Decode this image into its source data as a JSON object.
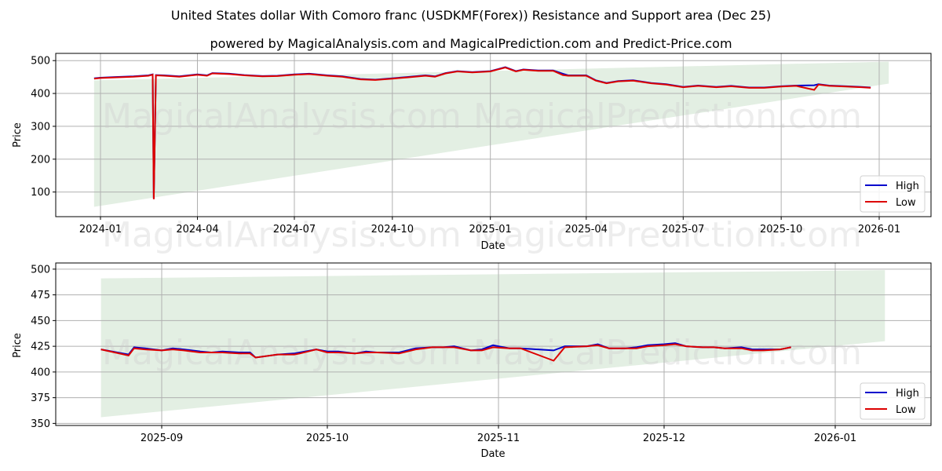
{
  "header": {
    "title": "United States dollar With Comoro franc (USDKMF(Forex)) Resistance and Support area (Dec 25)",
    "subtitle": "powered by MagicalAnalysis.com and MagicalPrediction.com and Predict-Price.com"
  },
  "watermarks": [
    "MagicalAnalysis.com",
    "MagicalPrediction.com"
  ],
  "colors": {
    "high": "#0000cc",
    "low": "#dd0000",
    "band": "#e3efe3",
    "grid": "#b0b0b0"
  },
  "legend": {
    "high_label": "High",
    "low_label": "Low"
  },
  "chart_data": [
    {
      "type": "line",
      "title": "Full history",
      "xlabel": "Date",
      "ylabel": "Price",
      "ylim": [
        25,
        522
      ],
      "yticks": [
        100,
        200,
        300,
        400,
        500
      ],
      "xticks": [
        "2024-01",
        "2024-04",
        "2024-07",
        "2024-10",
        "2025-01",
        "2025-04",
        "2025-07",
        "2025-10",
        "2026-01"
      ],
      "grid": true,
      "legend_position": "lower right",
      "band": {
        "name": "Resistance and Support area",
        "start": "2023-12-26",
        "end": "2026-01-10",
        "upper_start": 440,
        "upper_end": 497,
        "lower_start": 55,
        "lower_end": 430
      },
      "series": [
        {
          "name": "High",
          "x": [
            "2023-12-26",
            "2024-01-01",
            "2024-01-15",
            "2024-02-01",
            "2024-02-15",
            "2024-02-19",
            "2024-02-20",
            "2024-02-22",
            "2024-03-01",
            "2024-03-15",
            "2024-04-01",
            "2024-04-10",
            "2024-04-15",
            "2024-05-01",
            "2024-05-15",
            "2024-06-01",
            "2024-06-15",
            "2024-07-01",
            "2024-07-15",
            "2024-08-01",
            "2024-08-15",
            "2024-09-01",
            "2024-09-15",
            "2024-10-01",
            "2024-10-15",
            "2024-11-01",
            "2024-11-10",
            "2024-11-20",
            "2024-12-01",
            "2024-12-15",
            "2025-01-01",
            "2025-01-15",
            "2025-01-25",
            "2025-02-01",
            "2025-02-15",
            "2025-03-01",
            "2025-03-10",
            "2025-03-15",
            "2025-04-01",
            "2025-04-10",
            "2025-04-20",
            "2025-05-01",
            "2025-05-15",
            "2025-06-01",
            "2025-06-15",
            "2025-07-01",
            "2025-07-15",
            "2025-08-01",
            "2025-08-15",
            "2025-09-01",
            "2025-09-15",
            "2025-10-01",
            "2025-10-15",
            "2025-11-01",
            "2025-11-05",
            "2025-11-15",
            "2025-12-01",
            "2025-12-15",
            "2025-12-24"
          ],
          "values": [
            446,
            448,
            450,
            452,
            455,
            458,
            80,
            456,
            455,
            452,
            458,
            455,
            462,
            460,
            456,
            453,
            454,
            458,
            460,
            455,
            452,
            444,
            442,
            446,
            450,
            455,
            452,
            462,
            468,
            465,
            468,
            480,
            468,
            473,
            470,
            470,
            460,
            455,
            455,
            440,
            432,
            438,
            440,
            432,
            428,
            420,
            424,
            420,
            423,
            418,
            418,
            422,
            424,
            425,
            428,
            424,
            422,
            420,
            418
          ]
        },
        {
          "name": "Low",
          "x": [
            "2023-12-26",
            "2024-01-01",
            "2024-01-15",
            "2024-02-01",
            "2024-02-15",
            "2024-02-19",
            "2024-02-20",
            "2024-02-22",
            "2024-03-01",
            "2024-03-15",
            "2024-04-01",
            "2024-04-10",
            "2024-04-15",
            "2024-05-01",
            "2024-05-15",
            "2024-06-01",
            "2024-06-15",
            "2024-07-01",
            "2024-07-15",
            "2024-08-01",
            "2024-08-15",
            "2024-09-01",
            "2024-09-15",
            "2024-10-01",
            "2024-10-15",
            "2024-11-01",
            "2024-11-10",
            "2024-11-20",
            "2024-12-01",
            "2024-12-15",
            "2025-01-01",
            "2025-01-15",
            "2025-01-25",
            "2025-02-01",
            "2025-02-15",
            "2025-03-01",
            "2025-03-10",
            "2025-03-15",
            "2025-04-01",
            "2025-04-10",
            "2025-04-20",
            "2025-05-01",
            "2025-05-15",
            "2025-06-01",
            "2025-06-15",
            "2025-07-01",
            "2025-07-15",
            "2025-08-01",
            "2025-08-15",
            "2025-09-01",
            "2025-09-15",
            "2025-10-01",
            "2025-10-15",
            "2025-11-01",
            "2025-11-05",
            "2025-11-15",
            "2025-12-01",
            "2025-12-15",
            "2025-12-24"
          ],
          "values": [
            445,
            447,
            449,
            451,
            454,
            457,
            78,
            455,
            454,
            451,
            457,
            454,
            461,
            459,
            455,
            452,
            453,
            457,
            459,
            454,
            451,
            443,
            441,
            445,
            449,
            454,
            451,
            461,
            467,
            464,
            467,
            479,
            467,
            472,
            469,
            469,
            456,
            454,
            454,
            439,
            431,
            437,
            439,
            431,
            427,
            419,
            423,
            419,
            422,
            417,
            417,
            421,
            423,
            411,
            427,
            423,
            421,
            419,
            417
          ]
        }
      ]
    },
    {
      "type": "line",
      "title": "Recent detail",
      "xlabel": "Date",
      "ylabel": "Price",
      "ylim": [
        348,
        506
      ],
      "yticks": [
        350,
        375,
        400,
        425,
        450,
        475,
        500
      ],
      "xticks": [
        "2025-09",
        "2025-10",
        "2025-11",
        "2025-12",
        "2026-01"
      ],
      "grid": true,
      "legend_position": "lower right",
      "band": {
        "name": "Resistance and Support area",
        "start": "2025-08-21",
        "end": "2026-01-10",
        "upper_start": 491,
        "upper_end": 499,
        "lower_start": 356,
        "lower_end": 430
      },
      "series": [
        {
          "name": "High",
          "x": [
            "2025-08-21",
            "2025-08-26",
            "2025-08-27",
            "2025-08-29",
            "2025-09-01",
            "2025-09-03",
            "2025-09-05",
            "2025-09-08",
            "2025-09-10",
            "2025-09-12",
            "2025-09-15",
            "2025-09-17",
            "2025-09-18",
            "2025-09-22",
            "2025-09-25",
            "2025-09-26",
            "2025-09-29",
            "2025-10-01",
            "2025-10-03",
            "2025-10-06",
            "2025-10-08",
            "2025-10-10",
            "2025-10-14",
            "2025-10-17",
            "2025-10-20",
            "2025-10-22",
            "2025-10-24",
            "2025-10-27",
            "2025-10-29",
            "2025-10-31",
            "2025-11-03",
            "2025-11-05",
            "2025-11-11",
            "2025-11-13",
            "2025-11-17",
            "2025-11-19",
            "2025-11-21",
            "2025-11-24",
            "2025-11-26",
            "2025-11-28",
            "2025-12-01",
            "2025-12-03",
            "2025-12-05",
            "2025-12-08",
            "2025-12-10",
            "2025-12-12",
            "2025-12-15",
            "2025-12-17",
            "2025-12-19",
            "2025-12-22",
            "2025-12-24"
          ],
          "values": [
            422,
            417,
            424,
            423,
            421,
            423,
            422,
            420,
            419,
            420,
            419,
            419,
            414,
            417,
            418,
            419,
            422,
            420,
            420,
            418,
            420,
            419,
            419,
            423,
            424,
            424,
            425,
            421,
            422,
            426,
            423,
            423,
            421,
            425,
            425,
            427,
            423,
            423,
            424,
            426,
            427,
            428,
            425,
            424,
            424,
            423,
            424,
            422,
            422,
            422,
            424
          ]
        },
        {
          "name": "Low",
          "x": [
            "2025-08-21",
            "2025-08-26",
            "2025-08-27",
            "2025-08-29",
            "2025-09-01",
            "2025-09-03",
            "2025-09-05",
            "2025-09-08",
            "2025-09-10",
            "2025-09-12",
            "2025-09-15",
            "2025-09-17",
            "2025-09-18",
            "2025-09-22",
            "2025-09-25",
            "2025-09-26",
            "2025-09-29",
            "2025-10-01",
            "2025-10-03",
            "2025-10-06",
            "2025-10-08",
            "2025-10-10",
            "2025-10-14",
            "2025-10-17",
            "2025-10-20",
            "2025-10-22",
            "2025-10-24",
            "2025-10-27",
            "2025-10-29",
            "2025-10-31",
            "2025-11-03",
            "2025-11-05",
            "2025-11-11",
            "2025-11-13",
            "2025-11-17",
            "2025-11-19",
            "2025-11-21",
            "2025-11-24",
            "2025-11-26",
            "2025-11-28",
            "2025-12-01",
            "2025-12-03",
            "2025-12-05",
            "2025-12-08",
            "2025-12-10",
            "2025-12-12",
            "2025-12-15",
            "2025-12-17",
            "2025-12-19",
            "2025-12-22",
            "2025-12-24"
          ],
          "values": [
            422,
            416,
            423,
            422,
            421,
            422,
            421,
            419,
            419,
            419,
            418,
            418,
            414,
            417,
            417,
            418,
            422,
            419,
            419,
            418,
            419,
            419,
            418,
            422,
            424,
            424,
            424,
            421,
            421,
            424,
            423,
            423,
            411,
            424,
            425,
            426,
            423,
            423,
            423,
            425,
            426,
            427,
            425,
            424,
            424,
            423,
            423,
            421,
            421,
            422,
            424
          ]
        }
      ]
    }
  ]
}
